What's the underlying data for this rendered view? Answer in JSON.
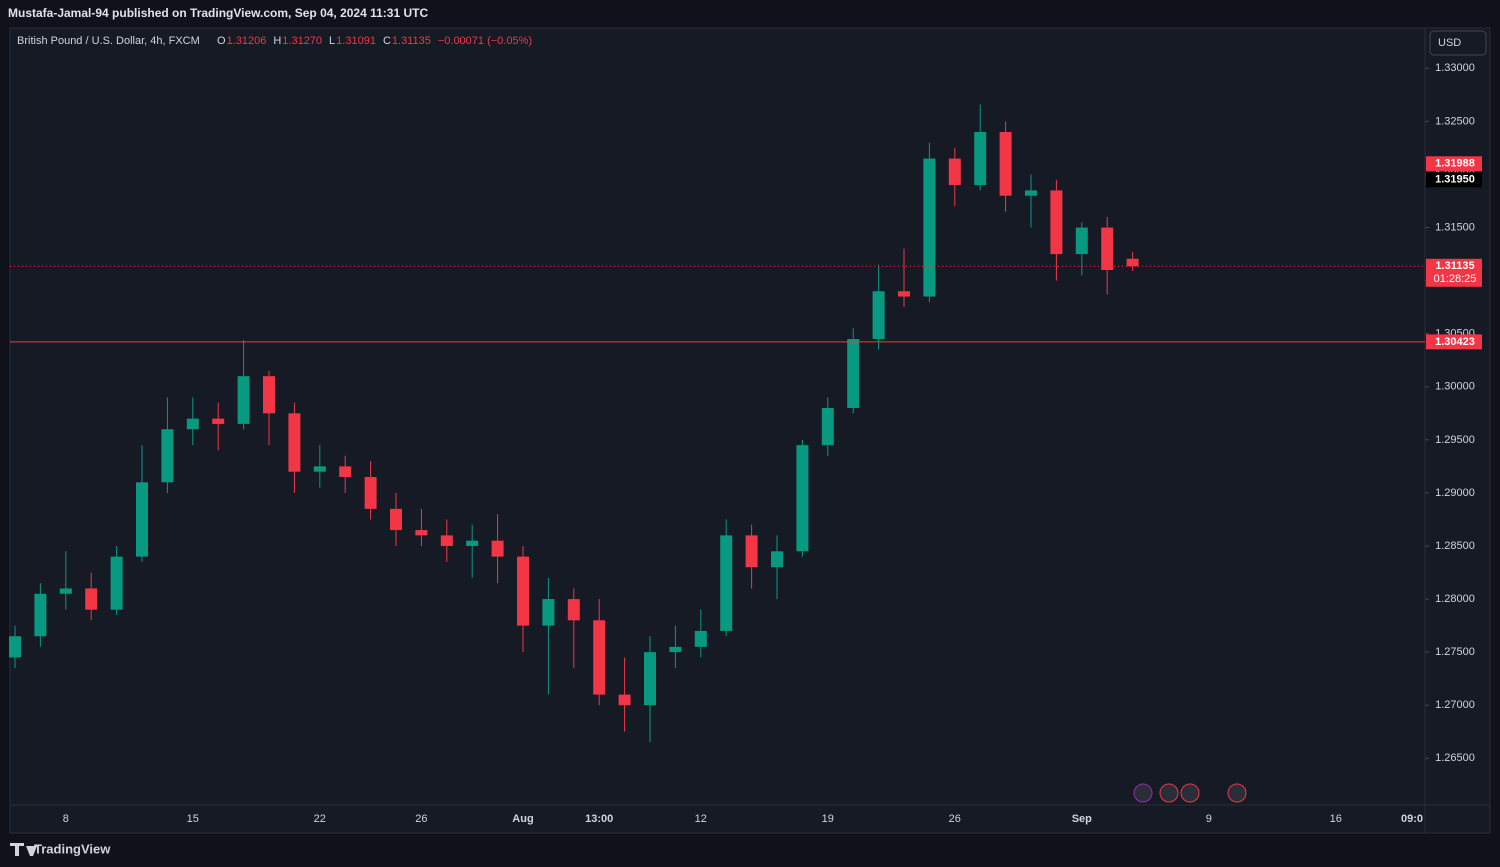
{
  "header": {
    "published": "Mustafa-Jamal-94 published on TradingView.com, Sep 04, 2024 11:31 UTC",
    "symbol": "British Pound / U.S. Dollar, 4h, FXCM",
    "ohlc": [
      {
        "key": "O",
        "text": "1.31206"
      },
      {
        "key": "H",
        "text": "1.31270"
      },
      {
        "key": "L",
        "text": "1.31091"
      },
      {
        "key": "C",
        "text": "1.31135"
      }
    ],
    "change": "−0.00071 (−0.05%)"
  },
  "currency_button": "USD",
  "footer_brand": "TradingView",
  "chart_data": {
    "type": "candlestick",
    "categories": [
      null,
      null,
      "8",
      null,
      null,
      null,
      null,
      "15",
      null,
      null,
      null,
      null,
      "22",
      null,
      null,
      null,
      "26",
      null,
      null,
      null,
      "Aug",
      null,
      null,
      "13:00",
      null,
      null,
      null,
      "12",
      null,
      null,
      null,
      null,
      "19",
      null,
      null,
      null,
      null,
      "26",
      null,
      null,
      null,
      null,
      "Sep",
      null,
      null,
      null,
      null,
      "9",
      null,
      null,
      null,
      null,
      "16",
      null,
      null,
      "09:0"
    ],
    "open": [
      1.2745,
      1.2765,
      1.2805,
      1.281,
      1.279,
      1.284,
      1.291,
      1.296,
      1.297,
      1.2965,
      1.301,
      1.2975,
      1.292,
      1.2925,
      1.2915,
      1.2885,
      1.2865,
      1.286,
      1.285,
      1.2855,
      1.284,
      1.2775,
      1.28,
      1.278,
      1.271,
      1.27,
      1.275,
      1.2755,
      1.277,
      1.286,
      1.283,
      1.2845,
      1.2945,
      1.298,
      1.3045,
      1.309,
      1.3085,
      1.3215,
      1.319,
      1.324,
      1.318,
      1.3185,
      1.3125,
      1.315,
      1.31206,
      null,
      null,
      null,
      null,
      null,
      null,
      null,
      null,
      null,
      null,
      null
    ],
    "high": [
      1.2775,
      1.2815,
      1.2845,
      1.2825,
      1.285,
      1.2945,
      1.299,
      1.299,
      1.2985,
      1.3044,
      1.3015,
      1.2985,
      1.2945,
      1.2935,
      1.293,
      1.29,
      1.2885,
      1.2875,
      1.287,
      1.288,
      1.285,
      1.282,
      1.281,
      1.28,
      1.2745,
      1.2765,
      1.2775,
      1.279,
      1.2875,
      1.287,
      1.286,
      1.295,
      1.299,
      1.3055,
      1.3115,
      1.313,
      1.323,
      1.3225,
      1.3266,
      1.325,
      1.32,
      1.3195,
      1.3155,
      1.316,
      1.3127,
      null,
      null,
      null,
      null,
      null,
      null,
      null,
      null,
      null,
      null,
      null
    ],
    "low": [
      1.2735,
      1.2755,
      1.279,
      1.278,
      1.2785,
      1.2835,
      1.29,
      1.2945,
      1.294,
      1.296,
      1.2945,
      1.29,
      1.2905,
      1.29,
      1.2875,
      1.285,
      1.285,
      1.2835,
      1.282,
      1.2815,
      1.275,
      1.271,
      1.2735,
      1.27,
      1.2675,
      1.2665,
      1.2735,
      1.2745,
      1.2765,
      1.281,
      1.28,
      1.284,
      1.2935,
      1.2975,
      1.3035,
      1.3075,
      1.308,
      1.317,
      1.3185,
      1.3165,
      1.315,
      1.31,
      1.3105,
      1.3087,
      1.31091,
      null,
      null,
      null,
      null,
      null,
      null,
      null,
      null,
      null,
      null,
      null
    ],
    "close": [
      1.2765,
      1.2805,
      1.281,
      1.279,
      1.284,
      1.291,
      1.296,
      1.297,
      1.2965,
      1.301,
      1.2975,
      1.292,
      1.2925,
      1.2915,
      1.2885,
      1.2865,
      1.286,
      1.285,
      1.2855,
      1.284,
      1.2775,
      1.28,
      1.278,
      1.271,
      1.27,
      1.275,
      1.2755,
      1.277,
      1.286,
      1.283,
      1.2845,
      1.2945,
      1.298,
      1.3045,
      1.309,
      1.3085,
      1.3215,
      1.319,
      1.324,
      1.318,
      1.3185,
      1.3125,
      1.315,
      1.311,
      1.31135,
      null,
      null,
      null,
      null,
      null,
      null,
      null,
      null,
      null,
      null,
      null
    ],
    "up_color": "#089981",
    "down_color": "#f23645",
    "ylim": [
      1.2606,
      1.3338
    ],
    "yticks": [
      {
        "value": 1.33,
        "label": "1.33000"
      },
      {
        "value": 1.325,
        "label": "1.32500"
      },
      {
        "value": 1.32,
        "label": "1.32000"
      },
      {
        "value": 1.315,
        "label": "1.31500"
      },
      {
        "value": 1.31,
        "label": "1.31000"
      },
      {
        "value": 1.305,
        "label": "1.30500"
      },
      {
        "value": 1.3,
        "label": "1.30000"
      },
      {
        "value": 1.295,
        "label": "1.29500"
      },
      {
        "value": 1.29,
        "label": "1.29000"
      },
      {
        "value": 1.285,
        "label": "1.28500"
      },
      {
        "value": 1.28,
        "label": "1.28000"
      },
      {
        "value": 1.275,
        "label": "1.27500"
      },
      {
        "value": 1.27,
        "label": "1.27000"
      },
      {
        "value": 1.265,
        "label": "1.26500"
      }
    ],
    "price_lines": [
      {
        "value": 1.30423,
        "label": "1.30423",
        "color": "#f23645",
        "style": "solid"
      },
      {
        "value": 1.31135,
        "label": "1.31135",
        "color": "#f23645",
        "style": "dotted",
        "countdown": "01:28:25"
      }
    ],
    "price_labels": [
      {
        "value": 1.3195,
        "label": "1.31950",
        "color": "#000000"
      },
      {
        "value": 1.31988,
        "label": "1.31988",
        "color": "#f23645"
      }
    ]
  }
}
